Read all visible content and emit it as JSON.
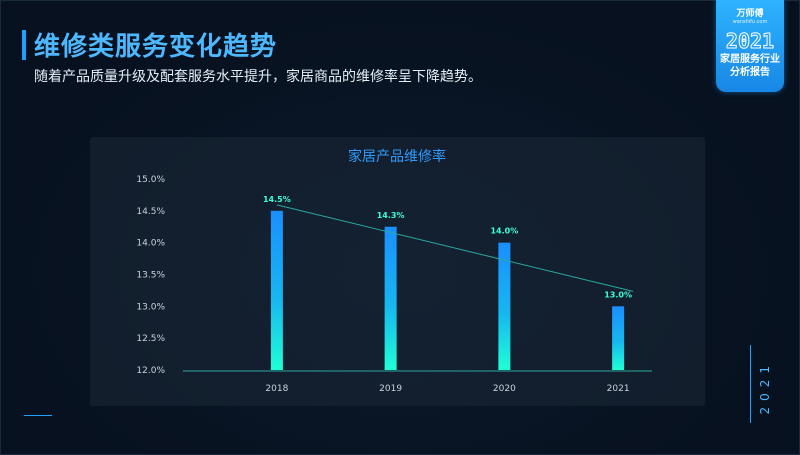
{
  "header": {
    "title": "维修类服务变化趋势",
    "subtitle": "随着产品质量升级及配套服务水平提升，家居商品的维修率呈下降趋势。"
  },
  "badge": {
    "brand": "万师傅",
    "brand_sub": "wanshifu.com",
    "year": "2021",
    "line1": "家居服务行业",
    "line2": "分析报告"
  },
  "side_year": "2021",
  "colors": {
    "accent": "#1ea0ff",
    "bar_top": "#1a8fff",
    "bar_bottom": "#1fffd6",
    "label": "#3affd9",
    "trend": "#2aa7a0"
  },
  "chart_data": {
    "type": "bar",
    "title": "家居产品维修率",
    "categories": [
      "2018",
      "2019",
      "2020",
      "2021"
    ],
    "values": [
      14.5,
      14.25,
      14.0,
      13.0
    ],
    "data_labels": [
      "14.5%",
      "14.3%",
      "14.0%",
      "13.0%"
    ],
    "yticks": [
      "15.0%",
      "14.5%",
      "14.0%",
      "13.5%",
      "13.0%",
      "12.5%",
      "12.0%"
    ],
    "ylim": [
      12.0,
      15.0
    ],
    "trendline": true,
    "xlabel": "",
    "ylabel": ""
  }
}
